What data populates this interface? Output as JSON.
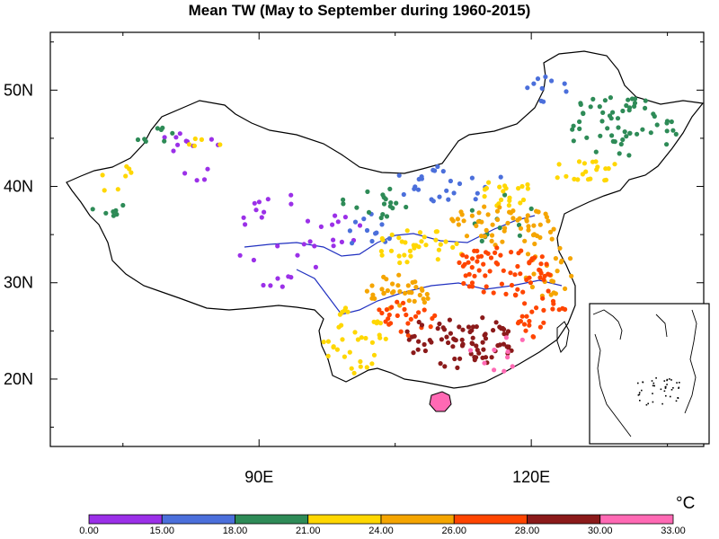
{
  "title": "Mean TW (May to September during 1960-2015)",
  "map": {
    "lon_range": [
      67,
      139
    ],
    "lat_range": [
      13,
      56
    ],
    "lat_ticks": [
      {
        "value": 50,
        "label": "50N"
      },
      {
        "value": 40,
        "label": "40N"
      },
      {
        "value": 30,
        "label": "30N"
      },
      {
        "value": 20,
        "label": "20N"
      }
    ],
    "lon_ticks": [
      {
        "value": 90,
        "label": "90E"
      },
      {
        "value": 120,
        "label": "120E"
      }
    ]
  },
  "colorbar": {
    "unit": "°C",
    "labels": [
      "0.00",
      "15.00",
      "18.00",
      "21.00",
      "24.00",
      "26.00",
      "28.00",
      "30.00",
      "33.00"
    ],
    "colors": [
      "#9b30e8",
      "#4b6fdb",
      "#2e8b57",
      "#ffd700",
      "#f5a500",
      "#ff4500",
      "#8b1a1a",
      "#ff69b4"
    ]
  }
}
